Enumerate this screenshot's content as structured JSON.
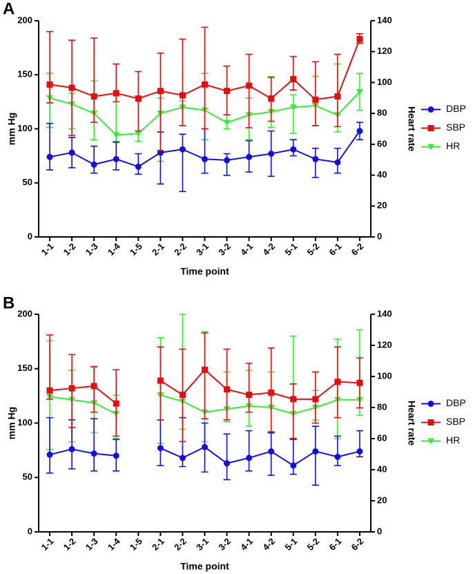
{
  "chart_data": [
    {
      "type": "line",
      "panel_label": "A",
      "x_label": "Time point",
      "y_label": "mm Hg",
      "y2_label": "Heart rate",
      "categories": [
        "1-1",
        "1-2",
        "1-3",
        "1-4",
        "1-5",
        "2-1",
        "2-2",
        "3-1",
        "3-2",
        "4-1",
        "4-2",
        "5-1",
        "5-2",
        "6-1",
        "6-2"
      ],
      "ylim": [
        0,
        200
      ],
      "yticks": [
        0,
        50,
        100,
        150,
        200
      ],
      "y2lim": [
        0,
        140
      ],
      "y2ticks": [
        0,
        20,
        40,
        60,
        80,
        100,
        120,
        140
      ],
      "series": [
        {
          "name": "DBP",
          "color": "#1010e0",
          "marker": "circle",
          "values": [
            74,
            78,
            67,
            72,
            65,
            78,
            81,
            72,
            71,
            74,
            77,
            81,
            72,
            69,
            98
          ],
          "error_low": [
            12,
            14,
            8,
            10,
            7,
            29,
            39,
            13,
            14,
            14,
            21,
            6,
            17,
            10,
            8
          ],
          "error_high": [
            31,
            14,
            17,
            16,
            12,
            19,
            14,
            28,
            6,
            15,
            21,
            9,
            10,
            13,
            8
          ]
        },
        {
          "name": "SBP",
          "color": "#e01010",
          "marker": "square",
          "values": [
            141,
            138,
            130,
            133,
            128,
            135,
            131,
            141,
            135,
            140,
            128,
            146,
            127,
            130,
            183
          ],
          "error_low": [
            17,
            44,
            24,
            8,
            30,
            55,
            28,
            41,
            22,
            39,
            21,
            10,
            24,
            28,
            4
          ],
          "error_high": [
            49,
            44,
            54,
            27,
            25,
            35,
            52,
            53,
            23,
            29,
            20,
            21,
            35,
            39,
            5
          ]
        },
        {
          "name": "HR",
          "color": "#33ee33",
          "marker": "triangle-down",
          "axis": "y2",
          "values": [
            90,
            86,
            80,
            66,
            67,
            80,
            84,
            82,
            74,
            79,
            81,
            84,
            85,
            79,
            94
          ],
          "error_low": [
            19,
            16,
            17,
            5,
            5,
            31,
            12,
            19,
            4,
            16,
            10,
            17,
            13,
            11,
            12
          ],
          "error_high": [
            16,
            7,
            21,
            26,
            24,
            10,
            4,
            24,
            5,
            11,
            22,
            8,
            19,
            33,
            12
          ]
        }
      ]
    },
    {
      "type": "line",
      "panel_label": "B",
      "x_label": "Time point",
      "y_label": "mm Hg",
      "y2_label": "Heart rate",
      "categories": [
        "1-1",
        "1-2",
        "1-3",
        "1-4",
        "1-5",
        "2-1",
        "2-2",
        "3-1",
        "3-2",
        "4-1",
        "4-2",
        "5-1",
        "5-2",
        "6-1",
        "6-2"
      ],
      "ylim": [
        0,
        200
      ],
      "yticks": [
        0,
        50,
        100,
        150,
        200
      ],
      "y2lim": [
        0,
        140
      ],
      "y2ticks": [
        0,
        20,
        40,
        60,
        80,
        100,
        120,
        140
      ],
      "series": [
        {
          "name": "DBP",
          "color": "#1010e0",
          "marker": "circle",
          "values": [
            71,
            76,
            72,
            70,
            null,
            77,
            68,
            78,
            63,
            68,
            74,
            61,
            74,
            69,
            74
          ],
          "error_low": [
            17,
            18,
            16,
            14,
            null,
            16,
            8,
            23,
            15,
            12,
            22,
            8,
            31,
            8,
            5
          ],
          "error_high": [
            34,
            27,
            32,
            15,
            null,
            26,
            37,
            22,
            27,
            25,
            17,
            24,
            23,
            19,
            19
          ]
        },
        {
          "name": "SBP",
          "color": "#e01010",
          "marker": "square",
          "values": [
            130,
            132,
            134,
            118,
            null,
            139,
            126,
            149,
            131,
            126,
            128,
            122,
            122,
            138,
            137
          ],
          "error_low": [
            8,
            36,
            24,
            30,
            null,
            36,
            43,
            45,
            28,
            16,
            36,
            36,
            22,
            33,
            23
          ],
          "error_high": [
            51,
            31,
            18,
            31,
            null,
            31,
            42,
            34,
            37,
            29,
            41,
            14,
            25,
            32,
            23
          ]
        },
        {
          "name": "HR",
          "color": "#33ee33",
          "marker": "triangle-down",
          "axis": "y2",
          "values": [
            87,
            85,
            83,
            76,
            null,
            88,
            84,
            77,
            79,
            81,
            80,
            76,
            80,
            85,
            85
          ],
          "error_low": [
            34,
            27,
            19,
            16,
            null,
            31,
            18,
            19,
            8,
            13,
            16,
            16,
            8,
            25,
            10
          ],
          "error_high": [
            36,
            19,
            23,
            12,
            null,
            37,
            56,
            52,
            24,
            23,
            23,
            50,
            11,
            39,
            45
          ]
        }
      ]
    }
  ]
}
